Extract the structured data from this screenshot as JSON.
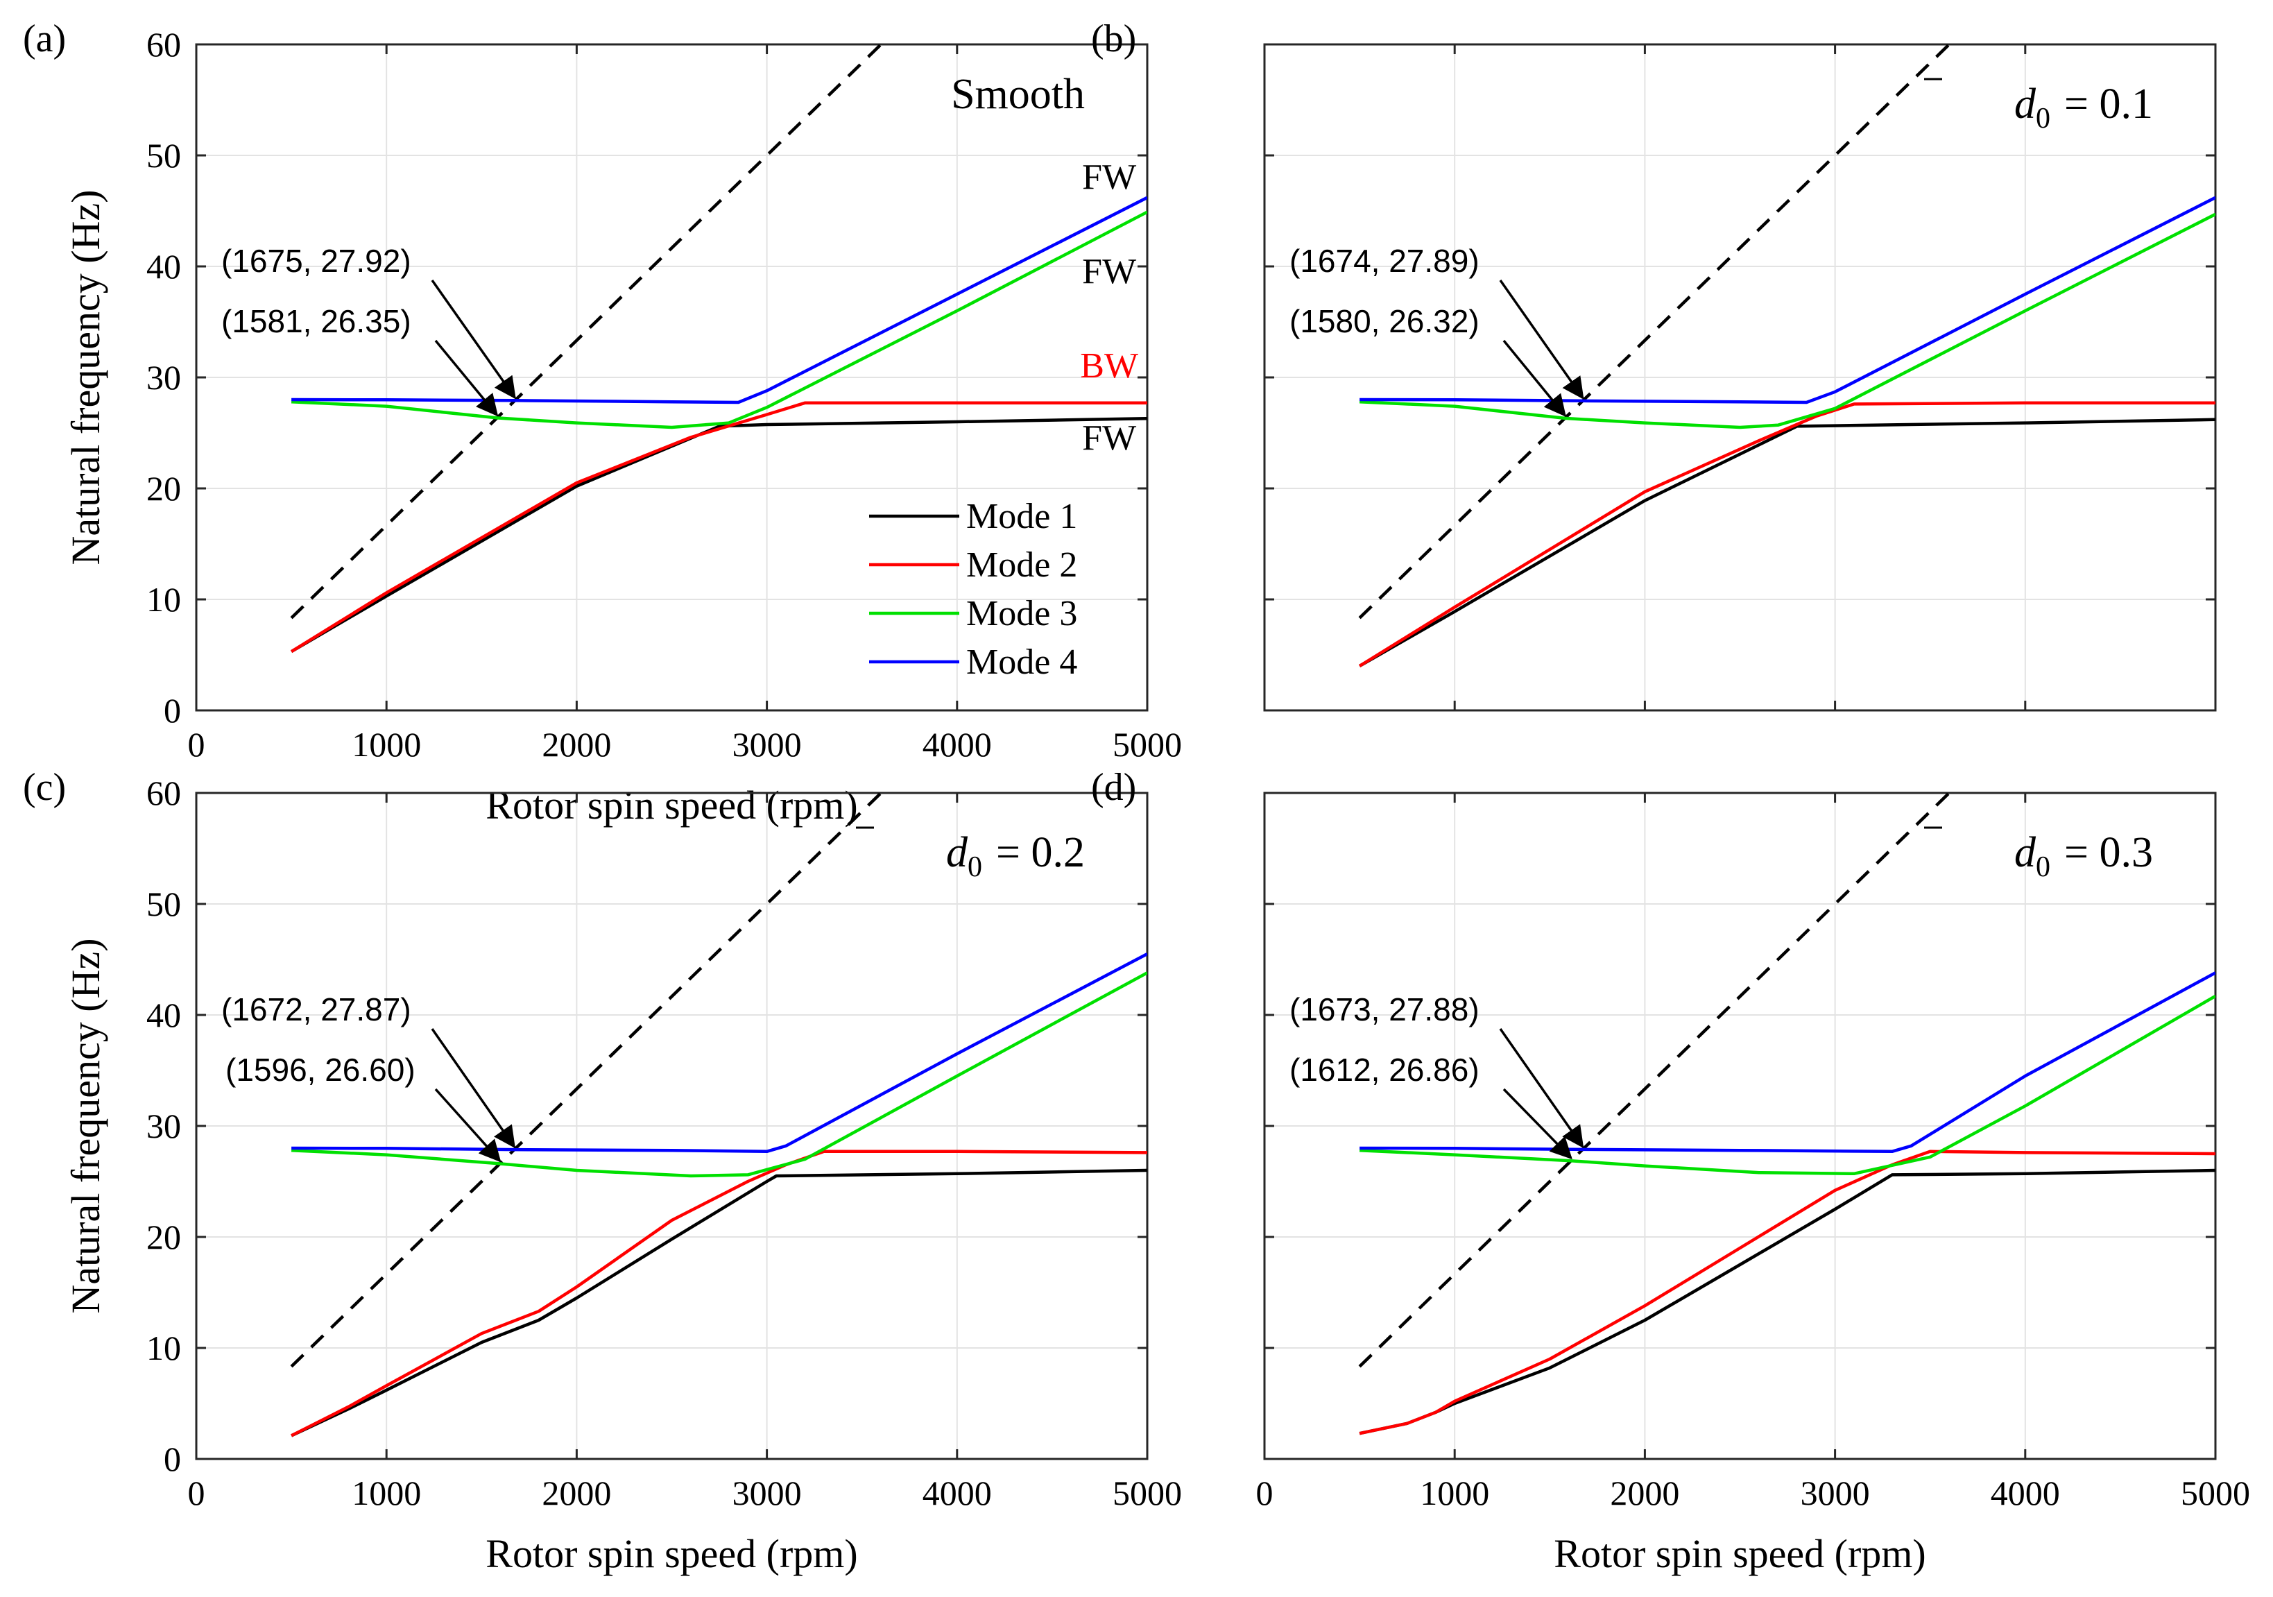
{
  "chart_data": [
    {
      "type": "line",
      "panel_label": "(a)",
      "title": "Smooth",
      "title_kind": "text",
      "xlabel": "Rotor spin speed (rpm)",
      "ylabel": "Natural frequency (Hz)",
      "xlim": [
        0,
        5000
      ],
      "ylim": [
        0,
        60
      ],
      "xticks": [
        "0",
        "1000",
        "2000",
        "3000",
        "4000",
        "5000"
      ],
      "yticks": [
        "0",
        "10",
        "20",
        "30",
        "40",
        "50",
        "60"
      ],
      "grid": true,
      "legend": {
        "placement": "center-right",
        "entries": [
          "Mode 1",
          "Mode 2",
          "Mode 3",
          "Mode 4"
        ]
      },
      "reference_line": {
        "name": "1X",
        "style": "dashed",
        "color": "#000000",
        "points": [
          [
            500,
            8.33
          ],
          [
            3600,
            60
          ]
        ]
      },
      "series": [
        {
          "name": "Mode 1",
          "color": "#000000",
          "points": [
            [
              500,
              5.3
            ],
            [
              1000,
              10.3
            ],
            [
              2000,
              20.2
            ],
            [
              2750,
              25.6
            ],
            [
              3000,
              25.75
            ],
            [
              4000,
              26.0
            ],
            [
              5000,
              26.3
            ]
          ]
        },
        {
          "name": "Mode 2",
          "color": "#ff0000",
          "points": [
            [
              500,
              5.3
            ],
            [
              1000,
              10.6
            ],
            [
              2000,
              20.5
            ],
            [
              2600,
              24.6
            ],
            [
              2990,
              26.6
            ],
            [
              3200,
              27.7
            ],
            [
              4000,
              27.7
            ],
            [
              5000,
              27.7
            ]
          ]
        },
        {
          "name": "Mode 3",
          "color": "#00e000",
          "points": [
            [
              500,
              27.8
            ],
            [
              1000,
              27.4
            ],
            [
              1581,
              26.35
            ],
            [
              2000,
              25.9
            ],
            [
              2500,
              25.5
            ],
            [
              2800,
              25.9
            ],
            [
              3000,
              27.3
            ],
            [
              4000,
              36.0
            ],
            [
              5000,
              44.9
            ]
          ]
        },
        {
          "name": "Mode 4",
          "color": "#0000ff",
          "points": [
            [
              500,
              28.0
            ],
            [
              1000,
              27.98
            ],
            [
              1675,
              27.92
            ],
            [
              2500,
              27.8
            ],
            [
              2850,
              27.75
            ],
            [
              3000,
              28.8
            ],
            [
              4000,
              37.5
            ],
            [
              5000,
              46.2
            ]
          ]
        }
      ],
      "annotations": [
        {
          "text": "(1675, 27.92)",
          "x": 1675,
          "y": 27.92,
          "row": 1
        },
        {
          "text": "(1581, 26.35)",
          "x": 1581,
          "y": 26.35,
          "row": 2
        }
      ],
      "mode_labels": [
        {
          "text": "FW",
          "x": 4800,
          "y": 47,
          "color": "#000000"
        },
        {
          "text": "FW",
          "x": 4800,
          "y": 38.5,
          "color": "#000000"
        },
        {
          "text": "BW",
          "x": 4800,
          "y": 30,
          "color": "#ff0000"
        },
        {
          "text": "FW",
          "x": 4800,
          "y": 23.5,
          "color": "#000000"
        }
      ]
    },
    {
      "type": "line",
      "panel_label": "(b)",
      "title": {
        "symbol": "d",
        "subscript": "0",
        "equals": "= 0.1"
      },
      "title_kind": "d0",
      "xlabel": "",
      "ylabel": "",
      "xlim": [
        0,
        5000
      ],
      "ylim": [
        0,
        60
      ],
      "xticks": [
        "",
        "",
        "",
        "",
        "",
        ""
      ],
      "yticks": [
        "",
        "",
        "",
        "",
        "",
        "",
        ""
      ],
      "grid": true,
      "reference_line": {
        "name": "1X",
        "style": "dashed",
        "color": "#000000",
        "points": [
          [
            500,
            8.33
          ],
          [
            3600,
            60
          ]
        ]
      },
      "series": [
        {
          "name": "Mode 1",
          "color": "#000000",
          "points": [
            [
              500,
              4.0
            ],
            [
              1000,
              8.9
            ],
            [
              2000,
              18.9
            ],
            [
              2800,
              25.6
            ],
            [
              3000,
              25.65
            ],
            [
              4000,
              25.9
            ],
            [
              5000,
              26.2
            ]
          ]
        },
        {
          "name": "Mode 2",
          "color": "#ff0000",
          "points": [
            [
              500,
              4.0
            ],
            [
              1000,
              9.3
            ],
            [
              2000,
              19.7
            ],
            [
              2600,
              24.3
            ],
            [
              2900,
              26.5
            ],
            [
              3100,
              27.6
            ],
            [
              4000,
              27.7
            ],
            [
              5000,
              27.7
            ]
          ]
        },
        {
          "name": "Mode 3",
          "color": "#00e000",
          "points": [
            [
              500,
              27.8
            ],
            [
              1000,
              27.4
            ],
            [
              1580,
              26.32
            ],
            [
              2000,
              25.9
            ],
            [
              2500,
              25.5
            ],
            [
              2700,
              25.7
            ],
            [
              3000,
              27.2
            ],
            [
              4000,
              36.0
            ],
            [
              5000,
              44.7
            ]
          ]
        },
        {
          "name": "Mode 4",
          "color": "#0000ff",
          "points": [
            [
              500,
              28.0
            ],
            [
              1000,
              27.98
            ],
            [
              1674,
              27.89
            ],
            [
              2500,
              27.8
            ],
            [
              2850,
              27.75
            ],
            [
              3000,
              28.7
            ],
            [
              4000,
              37.5
            ],
            [
              5000,
              46.2
            ]
          ]
        }
      ],
      "annotations": [
        {
          "text": "(1674, 27.89)",
          "x": 1674,
          "y": 27.89,
          "row": 1
        },
        {
          "text": "(1580, 26.32)",
          "x": 1580,
          "y": 26.32,
          "row": 2
        }
      ]
    },
    {
      "type": "line",
      "panel_label": "(c)",
      "title": {
        "symbol": "d",
        "subscript": "0",
        "equals": "= 0.2"
      },
      "title_kind": "d0",
      "xlabel": "Rotor spin speed (rpm)",
      "ylabel": "Natural frequency (Hz)",
      "xlim": [
        0,
        5000
      ],
      "ylim": [
        0,
        60
      ],
      "xticks": [
        "0",
        "1000",
        "2000",
        "3000",
        "4000",
        "5000"
      ],
      "yticks": [
        "0",
        "10",
        "20",
        "30",
        "40",
        "50",
        "60"
      ],
      "grid": true,
      "reference_line": {
        "name": "1X",
        "style": "dashed",
        "color": "#000000",
        "points": [
          [
            500,
            8.33
          ],
          [
            3600,
            60
          ]
        ]
      },
      "series": [
        {
          "name": "Mode 1",
          "color": "#000000",
          "points": [
            [
              500,
              2.1
            ],
            [
              800,
              4.5
            ],
            [
              1000,
              6.2
            ],
            [
              1500,
              10.5
            ],
            [
              1800,
              12.5
            ],
            [
              2000,
              14.5
            ],
            [
              2500,
              19.8
            ],
            [
              3000,
              25.0
            ],
            [
              3050,
              25.5
            ],
            [
              4000,
              25.7
            ],
            [
              5000,
              26.0
            ]
          ]
        },
        {
          "name": "Mode 2",
          "color": "#ff0000",
          "points": [
            [
              500,
              2.1
            ],
            [
              800,
              4.7
            ],
            [
              1000,
              6.6
            ],
            [
              1500,
              11.3
            ],
            [
              1800,
              13.3
            ],
            [
              2000,
              15.5
            ],
            [
              2500,
              21.5
            ],
            [
              2900,
              25.0
            ],
            [
              3100,
              26.5
            ],
            [
              3300,
              27.7
            ],
            [
              4000,
              27.7
            ],
            [
              5000,
              27.6
            ]
          ]
        },
        {
          "name": "Mode 3",
          "color": "#00e000",
          "points": [
            [
              500,
              27.8
            ],
            [
              1000,
              27.4
            ],
            [
              1596,
              26.6
            ],
            [
              2000,
              26.0
            ],
            [
              2600,
              25.5
            ],
            [
              2900,
              25.6
            ],
            [
              3200,
              27.0
            ],
            [
              4000,
              34.5
            ],
            [
              5000,
              43.8
            ]
          ]
        },
        {
          "name": "Mode 4",
          "color": "#0000ff",
          "points": [
            [
              500,
              28.0
            ],
            [
              1000,
              27.98
            ],
            [
              1672,
              27.87
            ],
            [
              2500,
              27.8
            ],
            [
              3000,
              27.7
            ],
            [
              3100,
              28.2
            ],
            [
              4000,
              36.5
            ],
            [
              5000,
              45.5
            ]
          ]
        }
      ],
      "annotations": [
        {
          "text": "(1672, 27.87)",
          "x": 1672,
          "y": 27.87,
          "row": 1
        },
        {
          "text": "(1596, 26.60)",
          "x": 1596,
          "y": 26.6,
          "row": 2
        }
      ]
    },
    {
      "type": "line",
      "panel_label": "(d)",
      "title": {
        "symbol": "d",
        "subscript": "0",
        "equals": "= 0.3"
      },
      "title_kind": "d0",
      "xlabel": "Rotor spin speed (rpm)",
      "ylabel": "",
      "xlim": [
        0,
        5000
      ],
      "ylim": [
        0,
        60
      ],
      "xticks": [
        "0",
        "1000",
        "2000",
        "3000",
        "4000",
        "5000"
      ],
      "yticks": [
        "",
        "",
        "",
        "",
        "",
        "",
        ""
      ],
      "grid": true,
      "reference_line": {
        "name": "1X",
        "style": "dashed",
        "color": "#000000",
        "points": [
          [
            500,
            8.33
          ],
          [
            3600,
            60
          ]
        ]
      },
      "series": [
        {
          "name": "Mode 1",
          "color": "#000000",
          "points": [
            [
              500,
              2.3
            ],
            [
              750,
              3.2
            ],
            [
              900,
              4.2
            ],
            [
              1000,
              5.0
            ],
            [
              1500,
              8.2
            ],
            [
              2000,
              12.5
            ],
            [
              2500,
              17.5
            ],
            [
              3000,
              22.5
            ],
            [
              3300,
              25.6
            ],
            [
              4000,
              25.7
            ],
            [
              5000,
              26.0
            ]
          ]
        },
        {
          "name": "Mode 2",
          "color": "#ff0000",
          "points": [
            [
              500,
              2.3
            ],
            [
              750,
              3.2
            ],
            [
              900,
              4.2
            ],
            [
              1000,
              5.2
            ],
            [
              1500,
              9.0
            ],
            [
              2000,
              13.8
            ],
            [
              2500,
              19.0
            ],
            [
              3000,
              24.2
            ],
            [
              3300,
              26.5
            ],
            [
              3500,
              27.7
            ],
            [
              4000,
              27.6
            ],
            [
              5000,
              27.5
            ]
          ]
        },
        {
          "name": "Mode 3",
          "color": "#00e000",
          "points": [
            [
              500,
              27.8
            ],
            [
              1000,
              27.4
            ],
            [
              1612,
              26.86
            ],
            [
              2000,
              26.4
            ],
            [
              2600,
              25.8
            ],
            [
              3100,
              25.7
            ],
            [
              3500,
              27.2
            ],
            [
              4000,
              31.8
            ],
            [
              5000,
              41.7
            ]
          ]
        },
        {
          "name": "Mode 4",
          "color": "#0000ff",
          "points": [
            [
              500,
              28.0
            ],
            [
              1000,
              27.98
            ],
            [
              1673,
              27.88
            ],
            [
              2500,
              27.8
            ],
            [
              3300,
              27.7
            ],
            [
              3400,
              28.2
            ],
            [
              4000,
              34.5
            ],
            [
              5000,
              43.8
            ]
          ]
        }
      ],
      "annotations": [
        {
          "text": "(1673, 27.88)",
          "x": 1673,
          "y": 27.88,
          "row": 1
        },
        {
          "text": "(1612, 26.86)",
          "x": 1612,
          "y": 26.86,
          "row": 2
        }
      ]
    }
  ]
}
